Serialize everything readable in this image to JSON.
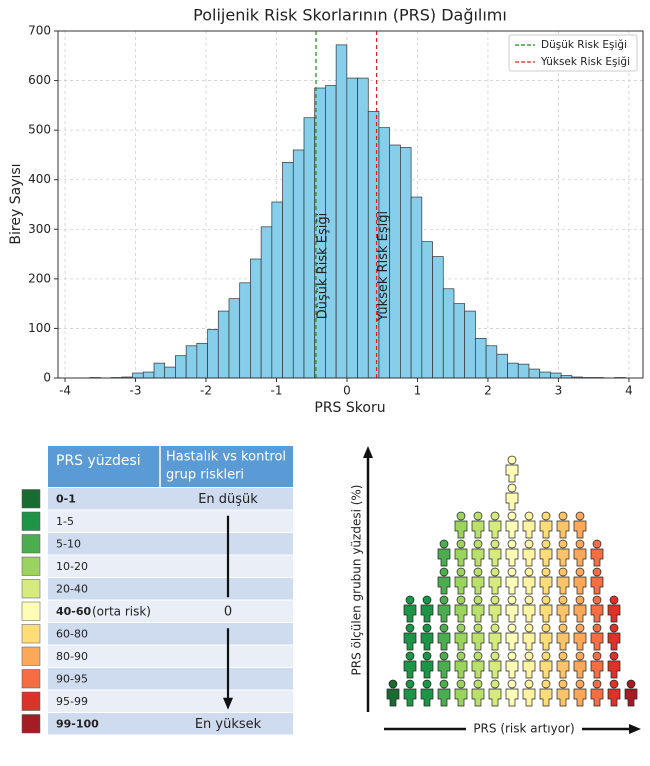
{
  "chart_data": {
    "type": "histogram",
    "title": "Polijenik Risk Skorlarının (PRS) Dağılımı",
    "xlabel": "PRS Skoru",
    "ylabel": "Birey Sayısı",
    "bins": [
      -3.65,
      -3.498,
      -3.346,
      -3.194,
      -3.042,
      -2.89,
      -2.738,
      -2.586,
      -2.434,
      -2.282,
      -2.13,
      -1.978,
      -1.826,
      -1.674,
      -1.522,
      -1.37,
      -1.218,
      -1.066,
      -0.914,
      -0.762,
      -0.61,
      -0.458,
      -0.306,
      -0.154,
      -0.002,
      0.15,
      0.302,
      0.454,
      0.606,
      0.758,
      0.91,
      1.062,
      1.214,
      1.366,
      1.518,
      1.67,
      1.822,
      1.974,
      2.126,
      2.278,
      2.43,
      2.582,
      2.734,
      2.886,
      3.038,
      3.19,
      3.342,
      3.494,
      3.646,
      3.798,
      3.95
    ],
    "values": [
      1,
      0,
      1,
      2,
      10,
      12,
      30,
      22,
      45,
      65,
      70,
      98,
      135,
      160,
      192,
      240,
      305,
      355,
      435,
      460,
      525,
      585,
      590,
      672,
      605,
      605,
      538,
      505,
      470,
      465,
      365,
      275,
      245,
      180,
      150,
      135,
      80,
      65,
      48,
      30,
      28,
      18,
      12,
      10,
      5,
      2,
      1,
      1,
      0,
      1
    ],
    "color": "#87ceeb",
    "edge_color": "#333333",
    "thresholds": [
      {
        "name": "Düşük Risk Eşiği",
        "value": -0.44,
        "color": "#1a8a1a"
      },
      {
        "name": "Yüksek Risk Eşiği",
        "value": 0.42,
        "color": "#e02020"
      }
    ],
    "xlim": [
      -4.1,
      4.2
    ],
    "xticks": [
      -4,
      -3,
      -2,
      -1,
      0,
      1,
      2,
      3,
      4
    ],
    "ylim": [
      0,
      700
    ],
    "yticks": [
      0,
      100,
      200,
      300,
      400,
      500,
      600,
      700
    ],
    "grid": true,
    "legend": "upper right"
  },
  "table": {
    "headers": {
      "range": "PRS yüzdesi",
      "risk": [
        "Hastalık vs kontrol",
        "grup riskleri"
      ]
    },
    "rows": [
      {
        "range": "0-1",
        "risk": "En düşük",
        "color": "#1a6b32"
      },
      {
        "range": "1-5",
        "color": "#1e9447"
      },
      {
        "range": "5-10",
        "color": "#4cac50"
      },
      {
        "range": "10-20",
        "color": "#9bd35f"
      },
      {
        "range": "20-40",
        "color": "#d6ea7f"
      },
      {
        "range": "40-60",
        "note": "(orta risk)",
        "risk": "0",
        "color": "#fdfdb8"
      },
      {
        "range": "60-80",
        "color": "#fddc79"
      },
      {
        "range": "80-90",
        "color": "#fca85a"
      },
      {
        "range": "90-95",
        "color": "#f46d43"
      },
      {
        "range": "95-99",
        "color": "#db3328"
      },
      {
        "range": "99-100",
        "risk": "En yüksek",
        "color": "#a51d24"
      }
    ]
  },
  "pictogram": {
    "y_label": "PRS ölçülen grubun yüzdesi (%)",
    "x_label": "PRS (risk artıyor)"
  }
}
